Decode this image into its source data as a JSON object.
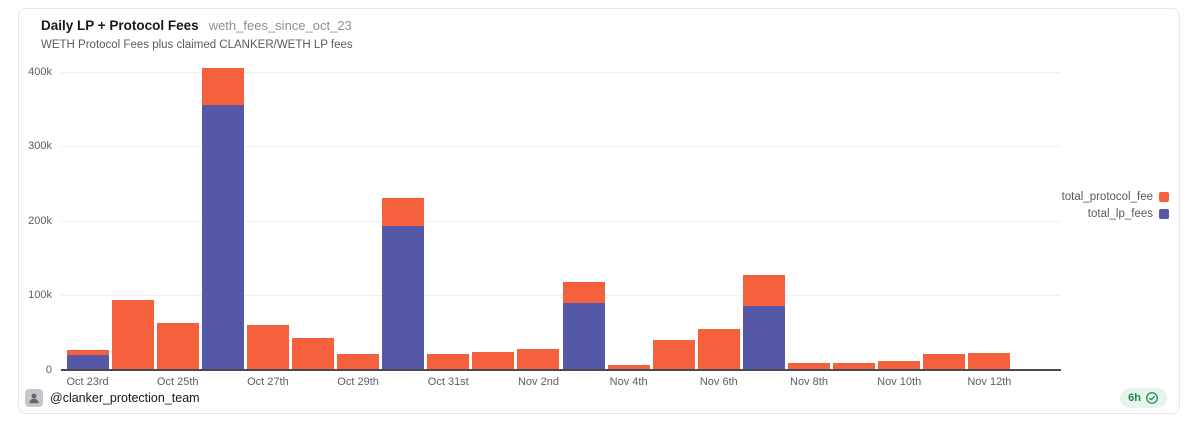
{
  "card": {
    "title": "Daily LP + Protocol Fees",
    "title_tag": "weth_fees_since_oct_23",
    "subtitle": "WETH Protocol Fees plus claimed CLANKER/WETH LP fees",
    "footer": {
      "handle": "@clanker_protection_team",
      "age_badge": "6h",
      "verified_icon": "verified-check-icon"
    }
  },
  "colors": {
    "protocol": "#F4613C",
    "lp": "#5557A7",
    "badge_bg": "#E7F4EC",
    "badge_text": "#1E8A55",
    "grid": "#EFEFF1",
    "axis": "#474A4F"
  },
  "chart_data": {
    "type": "bar",
    "stacked": true,
    "title": "Daily LP + Protocol Fees",
    "subtitle": "WETH Protocol Fees plus claimed CLANKER/WETH LP fees",
    "categories": [
      "Oct 23rd",
      "Oct 24th",
      "Oct 25th",
      "Oct 26th",
      "Oct 27th",
      "Oct 28th",
      "Oct 29th",
      "Oct 30th",
      "Oct 31st",
      "Nov 1st",
      "Nov 2nd",
      "Nov 3rd",
      "Nov 4th",
      "Nov 5th",
      "Nov 6th",
      "Nov 7th",
      "Nov 8th",
      "Nov 9th",
      "Nov 10th",
      "Nov 11th",
      "Nov 12th",
      "Nov 13th"
    ],
    "x_tick_labels": [
      "Oct 23rd",
      "Oct 25th",
      "Oct 27th",
      "Oct 29th",
      "Oct 31st",
      "Nov 2nd",
      "Nov 4th",
      "Nov 6th",
      "Nov 8th",
      "Nov 10th",
      "Nov 12th"
    ],
    "x_tick_every": 2,
    "series": [
      {
        "name": "total_lp_fees",
        "color": "#5557A7",
        "values": [
          20000,
          0,
          0,
          355000,
          0,
          0,
          0,
          193000,
          0,
          0,
          0,
          90000,
          0,
          0,
          0,
          86000,
          0,
          0,
          0,
          0,
          0,
          0
        ]
      },
      {
        "name": "total_protocol_fee",
        "color": "#F4613C",
        "values": [
          7000,
          94000,
          63000,
          50000,
          61000,
          43000,
          21000,
          38000,
          22000,
          24000,
          28000,
          28000,
          7000,
          40000,
          55000,
          42000,
          10000,
          9000,
          12000,
          22000,
          23000,
          2000
        ]
      }
    ],
    "yticks": [
      0,
      100000,
      200000,
      300000,
      400000
    ],
    "ytick_labels": [
      "0",
      "100k",
      "200k",
      "300k",
      "400k"
    ],
    "ylim": [
      0,
      412000
    ],
    "grid": true,
    "legend_position": "right"
  }
}
